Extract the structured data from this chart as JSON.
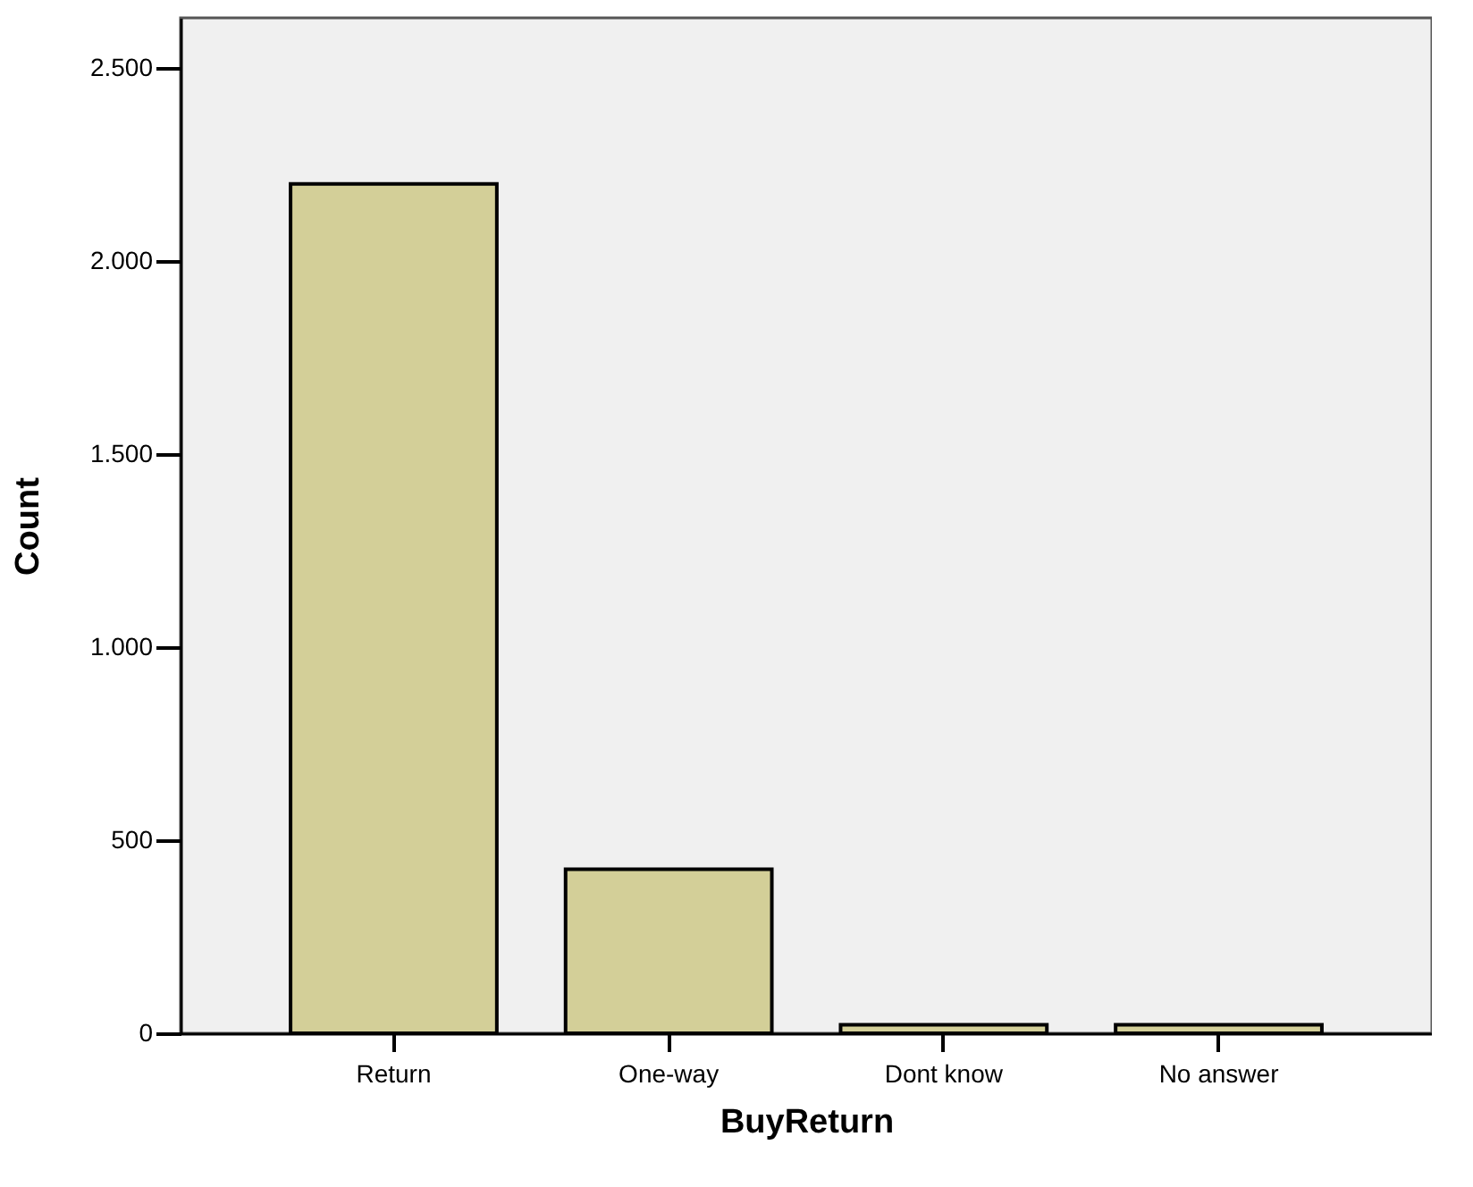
{
  "chart_data": {
    "type": "bar",
    "xlabel": "BuyReturn",
    "ylabel": "Count",
    "categories": [
      "Return",
      "One-way",
      "Dont know",
      "No answer"
    ],
    "values": [
      2200,
      425,
      22,
      22
    ],
    "color": "#d3cf98",
    "ylim": [
      0,
      2630
    ],
    "yticks": [
      0,
      500,
      {
        "value": 1000,
        "label": "1.000"
      },
      {
        "value": 1500,
        "label": "1.500"
      },
      {
        "value": 2000,
        "label": "2.000"
      },
      {
        "value": 2500,
        "label": "2.500"
      }
    ],
    "grid": false
  }
}
